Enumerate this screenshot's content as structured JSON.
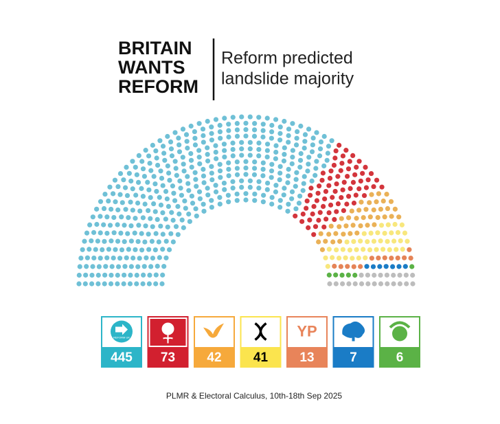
{
  "chart_data": {
    "type": "parliament",
    "title_lines": [
      "BRITAIN",
      "WANTS",
      "REFORM"
    ],
    "subtitle_lines": [
      "Reform predicted",
      "landslide majority"
    ],
    "parties": [
      {
        "seats": 445,
        "color": "#6fc0d6",
        "box_color": "#2cb5c8",
        "icon": "reform",
        "icon_text": "REFORM UK"
      },
      {
        "seats": 73,
        "color": "#d3353c",
        "box_color": "#d2202f",
        "icon": "rose"
      },
      {
        "seats": 42,
        "color": "#eab157",
        "box_color": "#f6a93b",
        "icon": "bird"
      },
      {
        "seats": 41,
        "color": "#f8e77d",
        "box_color": "#fbe44e",
        "icon": "snp",
        "text_color": "#000"
      },
      {
        "seats": 13,
        "color": "#e58457",
        "box_color": "#e8845a",
        "icon": "yp",
        "icon_text": "YP"
      },
      {
        "seats": 7,
        "color": "#1a7cc6",
        "box_color": "#1a7cc6",
        "icon": "tree"
      },
      {
        "seats": 6,
        "color": "#5bb246",
        "box_color": "#5bb246",
        "icon": "earth"
      },
      {
        "seats": 23,
        "color": "#bdbdbd"
      }
    ],
    "source": "PLMR & Electoral Calculus, 10th-18th Sep 2025"
  }
}
